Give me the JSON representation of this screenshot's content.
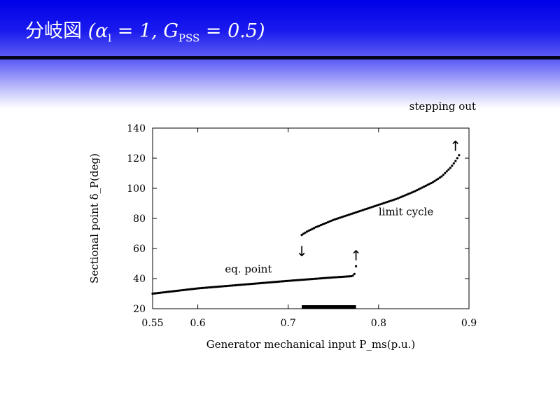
{
  "slide": {
    "title_jp": "分岐図",
    "title_math_open": "(",
    "title_math_alpha": "α",
    "title_math_alpha_sub": "l",
    "title_math_mid": " = 1, G",
    "title_math_g_sub": "PSS",
    "title_math_end": " = 0.5)"
  },
  "chart_data": {
    "type": "scatter",
    "xlabel": "Generator mechanical input   P_ms(p.u.)",
    "ylabel": "Sectional point   δ_P(deg)",
    "xlim": [
      0.55,
      0.9
    ],
    "ylim": [
      20,
      140
    ],
    "xticks": [
      {
        "value": 0.55,
        "label": "0.55"
      },
      {
        "value": 0.6,
        "label": "0.6"
      },
      {
        "value": 0.7,
        "label": "0.7"
      },
      {
        "value": 0.8,
        "label": "0.8"
      },
      {
        "value": 0.9,
        "label": "0.9"
      }
    ],
    "yticks": [
      {
        "value": 20,
        "label": "20"
      },
      {
        "value": 40,
        "label": "40"
      },
      {
        "value": 60,
        "label": "60"
      },
      {
        "value": 80,
        "label": "80"
      },
      {
        "value": 100,
        "label": "100"
      },
      {
        "value": 120,
        "label": "120"
      },
      {
        "value": 140,
        "label": "140"
      }
    ],
    "series": [
      {
        "name": "eq. point",
        "x": [
          0.55,
          0.6,
          0.65,
          0.7,
          0.75,
          0.77,
          0.773,
          0.775
        ],
        "y": [
          30.0,
          33.5,
          36.0,
          38.5,
          40.8,
          41.6,
          42.3,
          48.2
        ]
      },
      {
        "name": "limit cycle",
        "x": [
          0.715,
          0.72,
          0.73,
          0.75,
          0.78,
          0.8,
          0.82,
          0.84,
          0.86,
          0.87,
          0.88,
          0.885,
          0.889
        ],
        "y": [
          69.0,
          71.0,
          74.0,
          79.0,
          85.0,
          89.0,
          93.0,
          98.0,
          104.0,
          108.0,
          114.0,
          118.0,
          122.0
        ]
      }
    ],
    "highlight_interval": [
      0.715,
      0.775
    ],
    "annotations": [
      {
        "text": "stepping out",
        "x": 0.89,
        "y": 152
      },
      {
        "text": "limit cycle",
        "x": 0.8,
        "y": 82
      },
      {
        "text": "eq. point",
        "x": 0.63,
        "y": 44
      }
    ],
    "arrows": [
      {
        "direction": "up",
        "x": 0.885,
        "y": 125
      },
      {
        "direction": "up",
        "x": 0.775,
        "y": 52
      },
      {
        "direction": "down",
        "x": 0.715,
        "y": 55
      }
    ],
    "grid": false
  }
}
